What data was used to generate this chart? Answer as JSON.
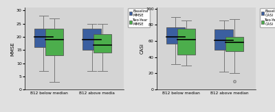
{
  "mmse": {
    "below_median_baseline": {
      "q1": 16,
      "median": 20,
      "q3": 23,
      "whisker_low": 7,
      "whisker_high": 28
    },
    "below_median_twoyear": {
      "q1": 13,
      "median": 19,
      "q3": 23,
      "whisker_low": 3,
      "whisker_high": 27
    },
    "above_median_baseline": {
      "q1": 15,
      "median": 19,
      "q3": 23,
      "whisker_low": 7,
      "whisker_high": 25
    },
    "above_median_twoyear": {
      "q1": 14,
      "median": 17,
      "q3": 21,
      "whisker_low": 7,
      "whisker_high": 25
    }
  },
  "casi": {
    "below_median_baseline": {
      "q1": 57,
      "median": 65,
      "q3": 77,
      "whisker_low": 31,
      "whisker_high": 90
    },
    "below_median_twoyear": {
      "q1": 43,
      "median": 62,
      "q3": 75,
      "whisker_low": 30,
      "whisker_high": 85
    },
    "above_median_baseline": {
      "q1": 49,
      "median": 61,
      "q3": 74,
      "whisker_low": 22,
      "whisker_high": 85
    },
    "above_median_twoyear": {
      "q1": 47,
      "median": 58,
      "q3": 65,
      "whisker_low": 20,
      "whisker_high": 87
    },
    "outlier_above_median_twoyear": 10
  },
  "mmse_ylim": [
    0,
    31
  ],
  "mmse_yticks": [
    0,
    5,
    10,
    15,
    20,
    25,
    30
  ],
  "casi_ylim": [
    0,
    101
  ],
  "casi_yticks": [
    0,
    20,
    40,
    60,
    80,
    100
  ],
  "blue_color": "#3b5fa0",
  "green_color": "#4cae4c",
  "box_width": 0.38,
  "background_color": "#d4d4d4",
  "fig_color": "#e0e0e0",
  "xlabel_below": "B12 below median",
  "xlabel_above_mmse": "B12 above media",
  "xlabel_above_casi": "B12 above median",
  "mmse_ylabel": "MMSE",
  "casi_ylabel": "CASI",
  "legend_mmse": [
    "Baseline\nMMSE",
    "Two-Year\nMMSE"
  ],
  "legend_casi": [
    "Baseline\nCASI",
    "Two-Year\nCASI"
  ]
}
